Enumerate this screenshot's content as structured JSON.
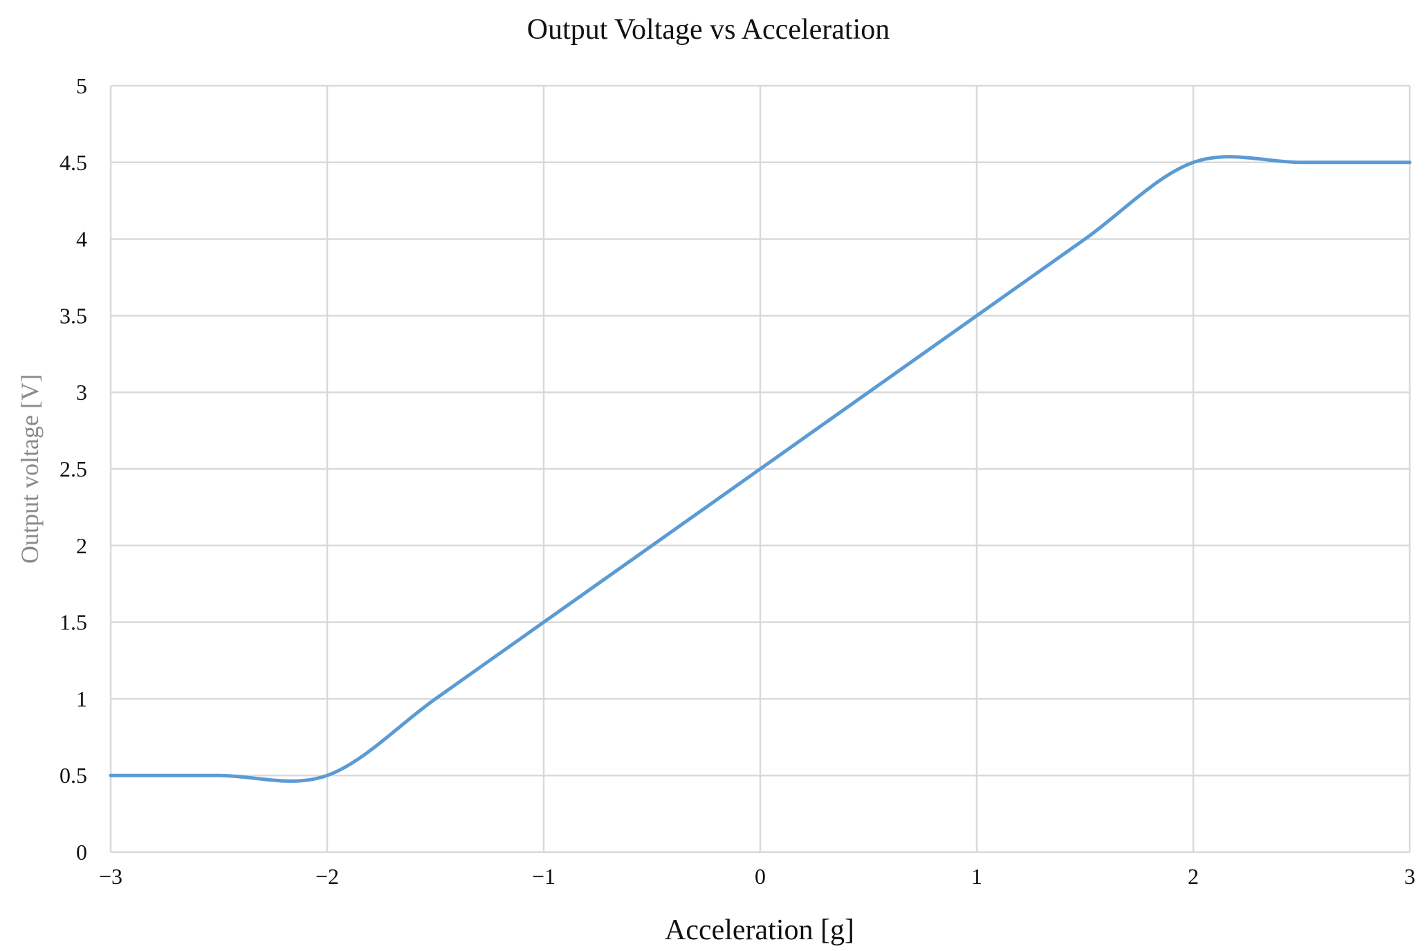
{
  "chart_data": {
    "type": "line",
    "title": "Output Voltage vs Acceleration",
    "xlabel": "Acceleration [g]",
    "ylabel": "Output voltage [V]",
    "xlim": [
      -3,
      3
    ],
    "ylim": [
      0,
      5
    ],
    "x_ticks": [
      -3,
      -2,
      -1,
      0,
      1,
      2,
      3
    ],
    "x_tick_labels": [
      "−3",
      "−2",
      "−1",
      "0",
      "1",
      "2",
      "3"
    ],
    "y_ticks": [
      0,
      0.5,
      1,
      1.5,
      2,
      2.5,
      3,
      3.5,
      4,
      4.5,
      5
    ],
    "y_tick_labels": [
      "0",
      "0.5",
      "1",
      "1.5",
      "2",
      "2.5",
      "3",
      "3.5",
      "4",
      "4.5",
      "5"
    ],
    "grid": true,
    "legend": "none",
    "series": [
      {
        "color": "#5b9bd5",
        "smooth": true,
        "x": [
          -3,
          -2.5,
          -2,
          -1.5,
          -1,
          -0.5,
          0,
          0.5,
          1,
          1.5,
          2,
          2.5,
          3
        ],
        "y": [
          0.5,
          0.5,
          0.5,
          1.0,
          1.5,
          2.0,
          2.5,
          3.0,
          3.5,
          4.0,
          4.5,
          4.5,
          4.5
        ]
      }
    ]
  }
}
